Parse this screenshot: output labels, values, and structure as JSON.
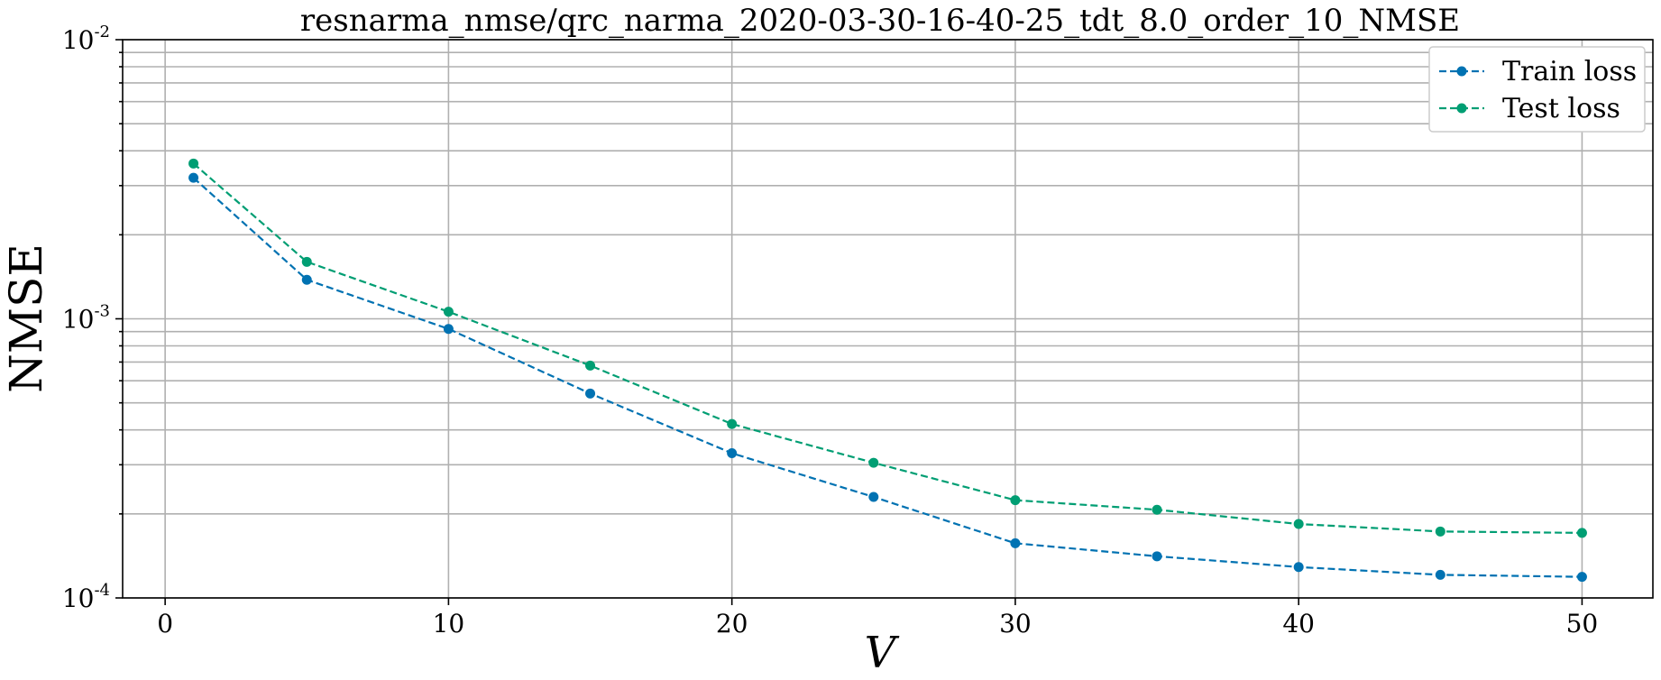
{
  "chart_data": {
    "type": "line",
    "title": "resnarma_nmse/qrc_narma_2020-03-30-16-40-25_tdt_8.0_order_10_NMSE",
    "xlabel": "V",
    "ylabel": "NMSE",
    "x": [
      1,
      5,
      10,
      15,
      20,
      25,
      30,
      35,
      40,
      45,
      50
    ],
    "xlim": [
      -1.5,
      52.5
    ],
    "ylim": [
      0.0001,
      0.01
    ],
    "yscale": "log",
    "x_ticks": [
      "0",
      "10",
      "20",
      "30",
      "40",
      "50"
    ],
    "x_tick_values": [
      0,
      10,
      20,
      30,
      40,
      50
    ],
    "y_ticks": [
      {
        "base": "10",
        "exp": "-4"
      },
      {
        "base": "10",
        "exp": "-3"
      },
      {
        "base": "10",
        "exp": "-2"
      }
    ],
    "grid": true,
    "legend_position": "top-right",
    "series": [
      {
        "name": "Train loss",
        "color": "#0072B2",
        "values": [
          0.0032,
          0.00138,
          0.00092,
          0.00054,
          0.00033,
          0.00023,
          0.000157,
          0.000141,
          0.000129,
          0.000121,
          0.000119
        ]
      },
      {
        "name": "Test loss",
        "color": "#009E73",
        "values": [
          0.0036,
          0.0016,
          0.00106,
          0.00068,
          0.00042,
          0.000305,
          0.000224,
          0.000207,
          0.000184,
          0.000173,
          0.000171
        ]
      }
    ]
  }
}
